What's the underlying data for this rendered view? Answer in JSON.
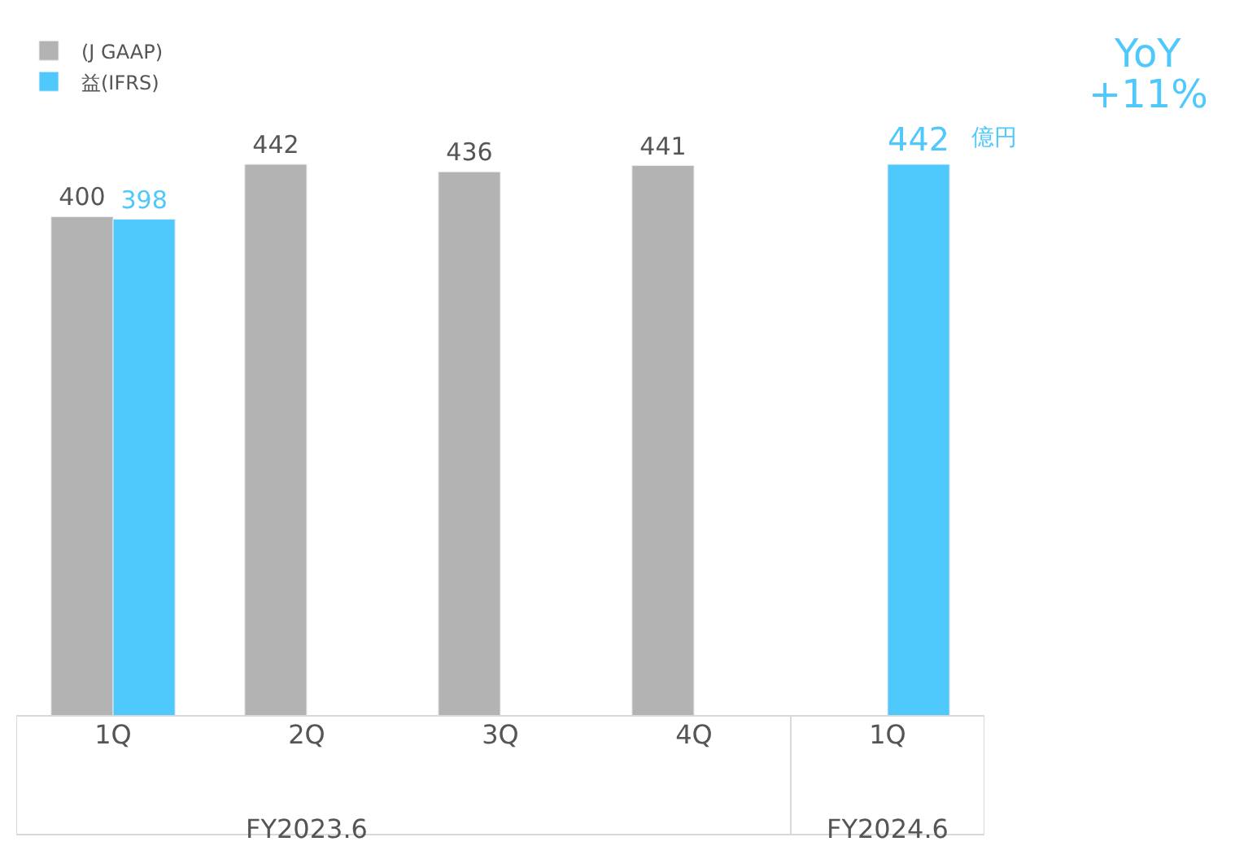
{
  "chart_data": {
    "type": "bar",
    "categories": [
      "1Q",
      "2Q",
      "3Q",
      "4Q",
      "1Q"
    ],
    "series": [
      {
        "name": "(J GAAP)",
        "color": "#b3b3b3",
        "values": [
          400,
          442,
          436,
          441,
          null
        ]
      },
      {
        "name": "益(IFRS)",
        "color": "#4fc8fb",
        "values": [
          398,
          null,
          null,
          null,
          442
        ]
      }
    ],
    "data_labels": true,
    "legend": "top left",
    "annotations": [
      "億円",
      "YoY",
      "+11%",
      "FY2023.6",
      "FY2024.6"
    ]
  }
}
